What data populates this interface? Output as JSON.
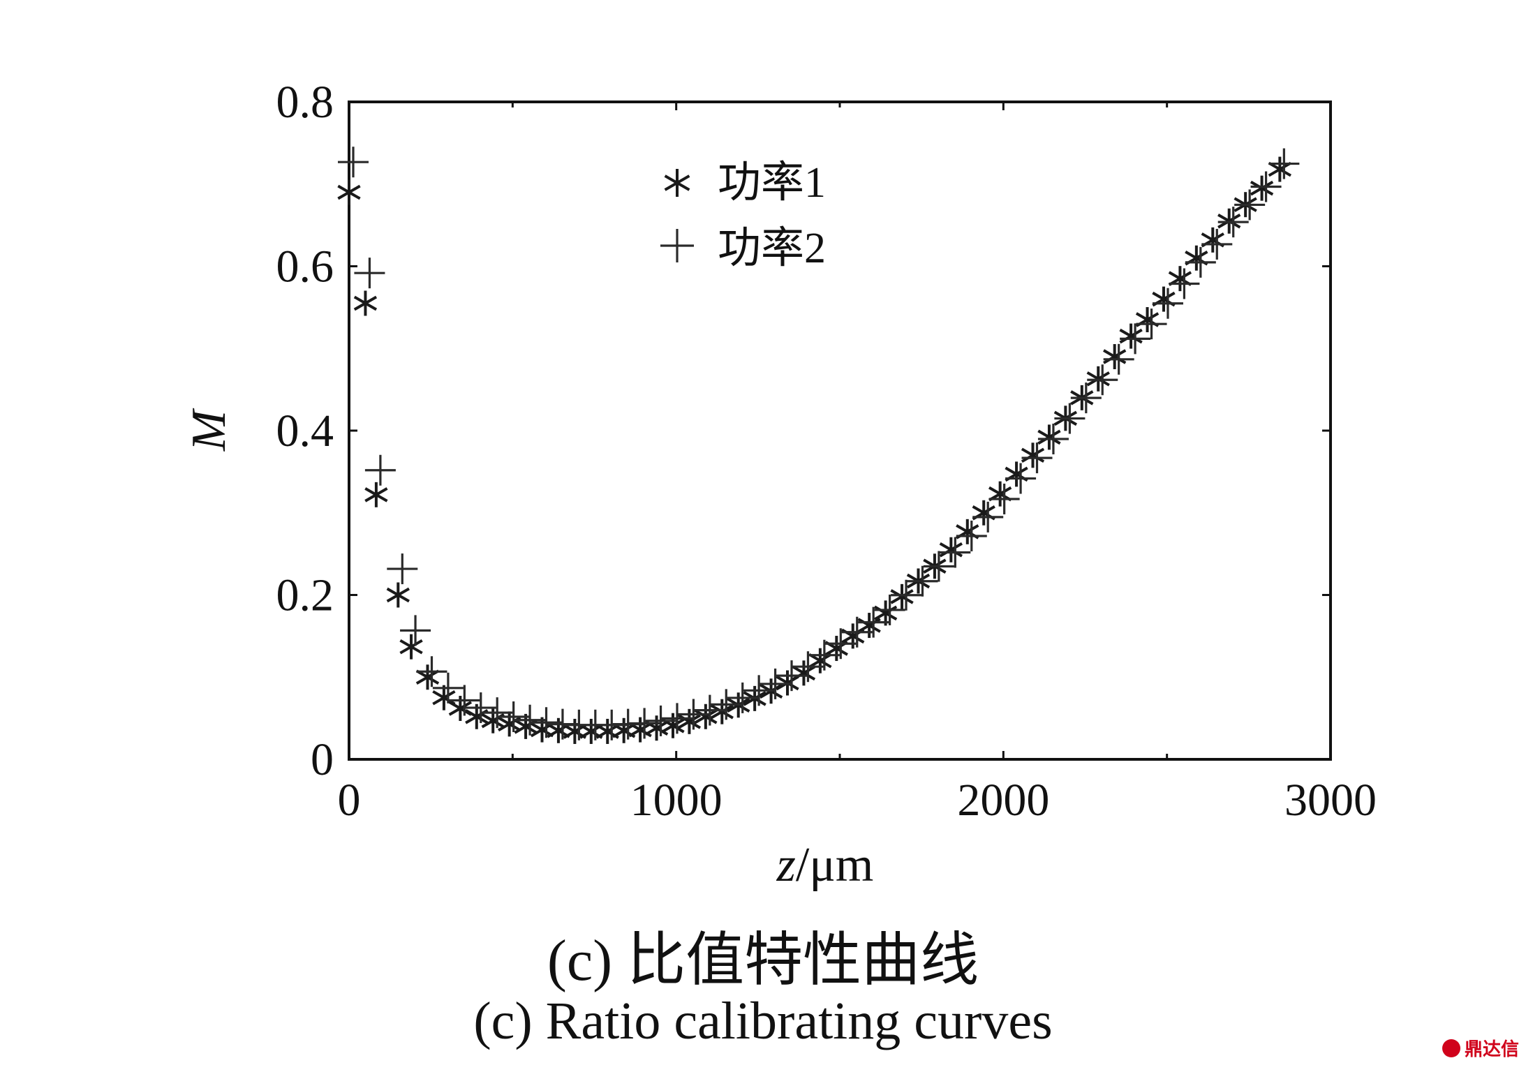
{
  "chart_data": {
    "type": "scatter",
    "xlabel_italic": "z",
    "xlabel_unit": "/μm",
    "ylabel": "M",
    "xlim": [
      0,
      3000
    ],
    "ylim": [
      0,
      0.8
    ],
    "xticks": [
      0,
      1000,
      2000,
      3000
    ],
    "yticks": [
      0,
      0.2,
      0.4,
      0.6,
      0.8
    ],
    "xtick_labels": [
      "0",
      "1000",
      "2000",
      "3000"
    ],
    "ytick_labels": [
      "0",
      "0.2",
      "0.4",
      "0.6",
      "0.8"
    ],
    "grid": false,
    "legend_position": "top-center",
    "series": [
      {
        "name": "功率1",
        "marker": "asterisk",
        "x": [
          0,
          50,
          83,
          150,
          190,
          240,
          290,
          340,
          390,
          440,
          490,
          540,
          590,
          640,
          690,
          740,
          790,
          840,
          890,
          940,
          990,
          1040,
          1090,
          1140,
          1190,
          1240,
          1290,
          1340,
          1390,
          1440,
          1490,
          1540,
          1590,
          1640,
          1690,
          1740,
          1790,
          1840,
          1890,
          1940,
          1990,
          2040,
          2090,
          2140,
          2190,
          2240,
          2290,
          2340,
          2390,
          2440,
          2490,
          2540,
          2590,
          2640,
          2690,
          2740,
          2790,
          2845
        ],
        "y": [
          0.69,
          0.555,
          0.322,
          0.2,
          0.137,
          0.1,
          0.075,
          0.062,
          0.052,
          0.047,
          0.043,
          0.04,
          0.036,
          0.035,
          0.034,
          0.034,
          0.034,
          0.035,
          0.036,
          0.038,
          0.041,
          0.046,
          0.052,
          0.058,
          0.066,
          0.074,
          0.083,
          0.093,
          0.105,
          0.12,
          0.135,
          0.15,
          0.163,
          0.178,
          0.198,
          0.217,
          0.235,
          0.255,
          0.277,
          0.3,
          0.323,
          0.347,
          0.37,
          0.392,
          0.415,
          0.44,
          0.463,
          0.49,
          0.515,
          0.535,
          0.56,
          0.585,
          0.61,
          0.632,
          0.655,
          0.675,
          0.695,
          0.718
        ]
      },
      {
        "name": "功率2",
        "marker": "plus",
        "x": [
          0,
          50,
          83,
          150,
          190,
          240,
          290,
          340,
          390,
          440,
          490,
          540,
          590,
          640,
          690,
          740,
          790,
          840,
          890,
          940,
          990,
          1040,
          1090,
          1140,
          1190,
          1240,
          1290,
          1340,
          1390,
          1440,
          1490,
          1540,
          1590,
          1640,
          1690,
          1740,
          1790,
          1840,
          1890,
          1940,
          1990,
          2040,
          2090,
          2140,
          2190,
          2240,
          2290,
          2340,
          2390,
          2440,
          2490,
          2540,
          2590,
          2640,
          2690,
          2740,
          2790,
          2845
        ],
        "y": [
          0.72,
          0.585,
          0.345,
          0.225,
          0.15,
          0.1,
          0.08,
          0.065,
          0.056,
          0.05,
          0.045,
          0.041,
          0.038,
          0.036,
          0.035,
          0.035,
          0.035,
          0.036,
          0.037,
          0.04,
          0.043,
          0.048,
          0.053,
          0.06,
          0.068,
          0.077,
          0.085,
          0.095,
          0.106,
          0.12,
          0.134,
          0.148,
          0.16,
          0.175,
          0.193,
          0.21,
          0.228,
          0.245,
          0.265,
          0.288,
          0.31,
          0.335,
          0.36,
          0.383,
          0.408,
          0.433,
          0.455,
          0.48,
          0.505,
          0.523,
          0.548,
          0.572,
          0.598,
          0.62,
          0.647,
          0.668,
          0.69,
          0.718
        ]
      }
    ]
  },
  "caption": {
    "cn": "(c) 比值特性曲线",
    "en": "(c) Ratio calibrating curves"
  },
  "watermark": {
    "text": "鼎达信",
    "color": "#d0021b"
  }
}
